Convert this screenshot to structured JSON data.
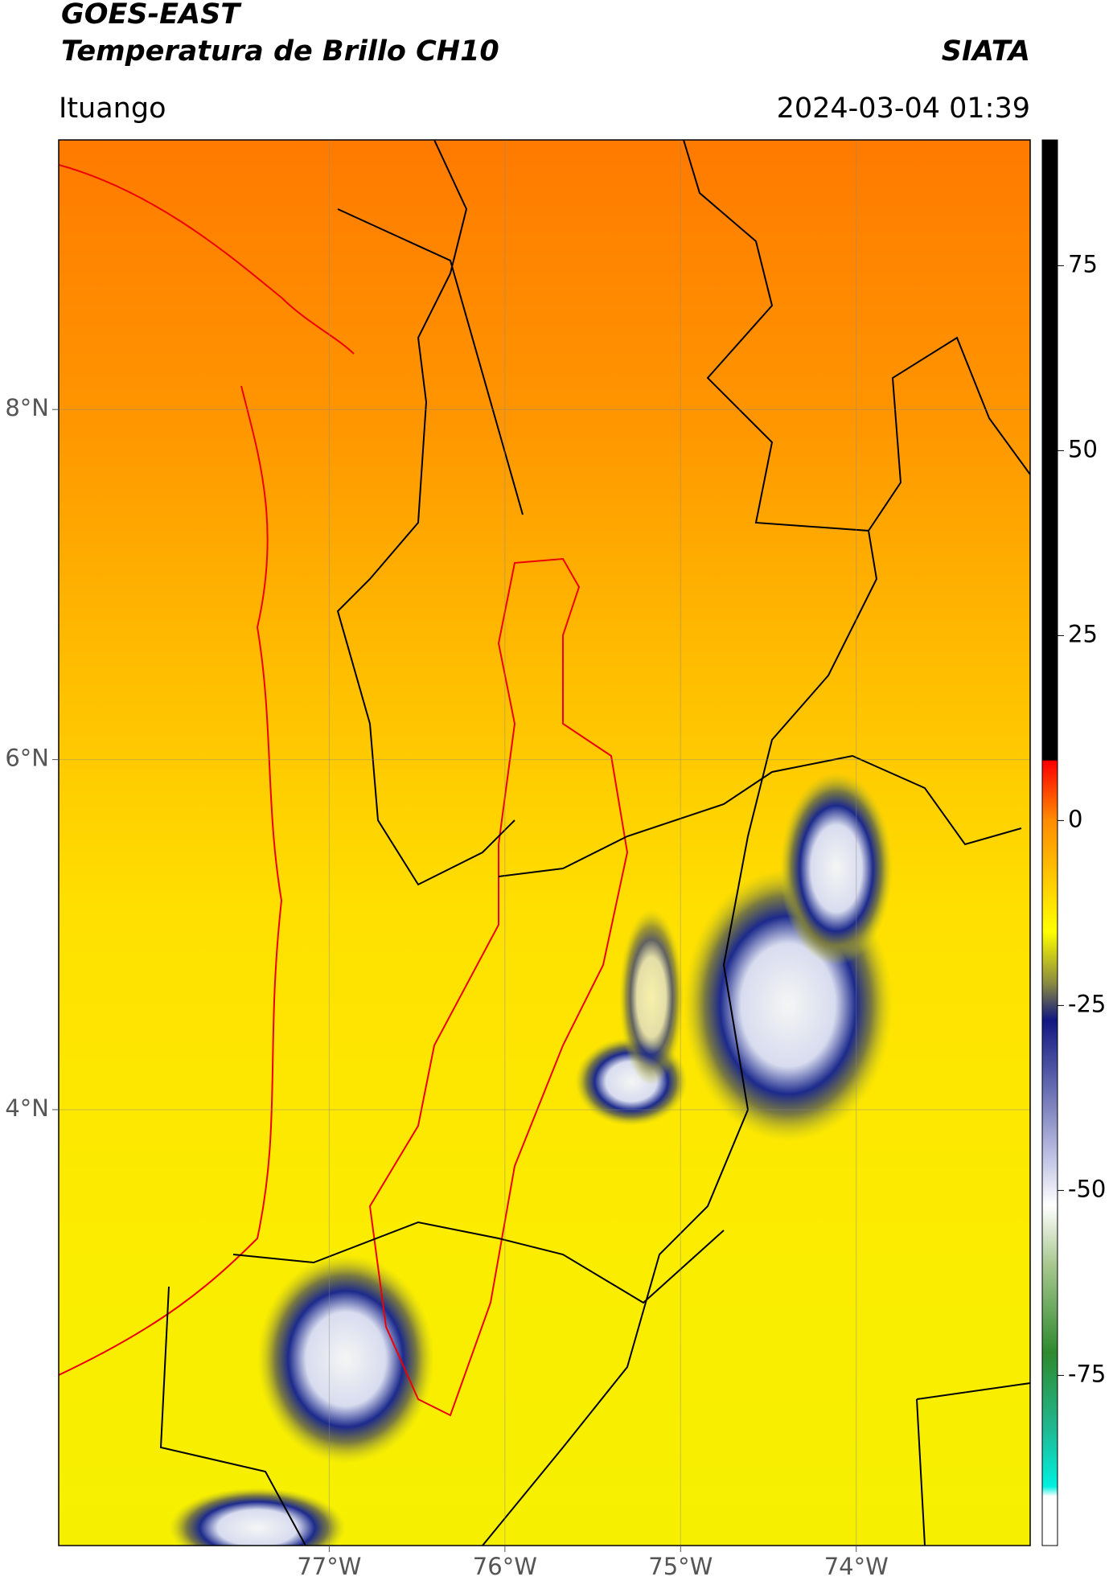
{
  "header": {
    "title": "GOES-EAST",
    "subtitle": "Temperatura de Brillo CH10",
    "source": "SIATA",
    "location": "Ituango",
    "datetime": "2024-03-04 01:39"
  },
  "map": {
    "lonlim": [
      -78.54,
      -73.01
    ],
    "latlim": [
      1.51,
      9.54
    ],
    "lon_ticks": [
      {
        "value": -77,
        "label": "77°W"
      },
      {
        "value": -76,
        "label": "76°W"
      },
      {
        "value": -75,
        "label": "75°W"
      },
      {
        "value": -74,
        "label": "74°W"
      }
    ],
    "lat_ticks": [
      {
        "value": 8,
        "label": "8°N"
      },
      {
        "value": 6,
        "label": "6°N"
      },
      {
        "value": 4,
        "label": "4°N"
      }
    ]
  },
  "colorbar": {
    "lim": [
      -98,
      92
    ],
    "ticks": [
      75,
      50,
      25,
      0,
      -25,
      -50,
      -75
    ]
  }
}
